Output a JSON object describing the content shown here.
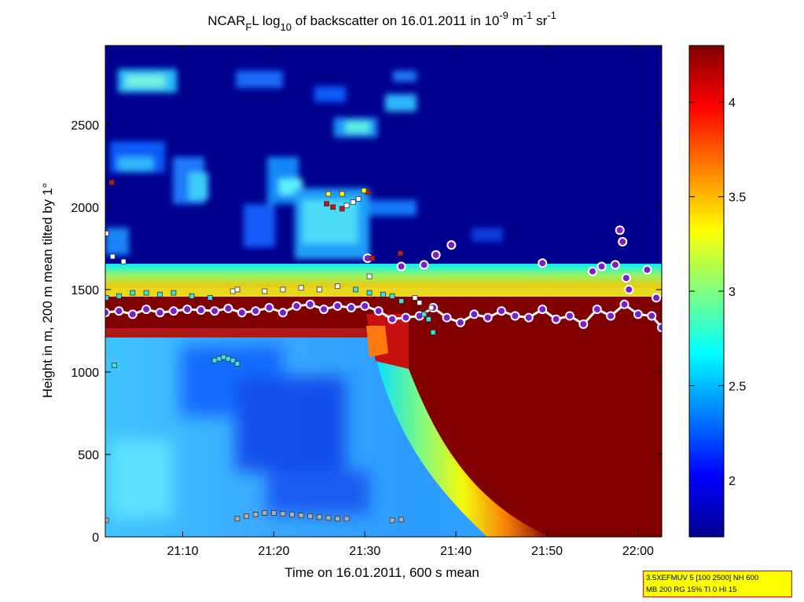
{
  "chart_data": {
    "type": "heatmap",
    "title": {
      "prefix": "NCAR",
      "sub1": "F",
      "mid1": "L log",
      "sub2": "10",
      "mid2": " of backscatter on 16.01.2011 in 10",
      "sup1": "-9",
      "mid3": " m",
      "sup2": "-1",
      "mid4": " sr",
      "sup3": "-1"
    },
    "xlabel": "Time on 16.01.2011, 600 s mean",
    "ylabel": "Height in m, 200 m mean tilted by 1°",
    "x_range_minutes": [
      1261.5,
      1322.6
    ],
    "x_ticks": [
      {
        "min": 1270,
        "label": "21:10"
      },
      {
        "min": 1280,
        "label": "21:20"
      },
      {
        "min": 1290,
        "label": "21:30"
      },
      {
        "min": 1300,
        "label": "21:40"
      },
      {
        "min": 1310,
        "label": "21:50"
      },
      {
        "min": 1320,
        "label": "22:00"
      }
    ],
    "ylim": [
      0,
      2980
    ],
    "y_ticks": [
      0,
      500,
      1000,
      1500,
      2000,
      2500
    ],
    "colorbar": {
      "range": [
        1.7,
        4.3
      ],
      "ticks": [
        2,
        2.5,
        3,
        3.5,
        4
      ],
      "colormap": "jet"
    },
    "series": [
      {
        "marker": "cloud-base-circle",
        "x": [
          1261.5,
          1263,
          1264.5,
          1266,
          1267.5,
          1269,
          1270.5,
          1272,
          1273.5,
          1275,
          1276.5,
          1278,
          1279.5,
          1281,
          1282.5,
          1284,
          1285.5,
          1287,
          1288.5,
          1290,
          1291.5,
          1293,
          1294.5,
          1296,
          1297.5,
          1299,
          1300.5,
          1302,
          1303.5,
          1305,
          1306.5,
          1308,
          1309.5,
          1311,
          1312.5,
          1314,
          1315.5,
          1317,
          1318.5,
          1320,
          1321.5,
          1322.6
        ],
        "y": [
          1360,
          1370,
          1350,
          1380,
          1360,
          1370,
          1380,
          1375,
          1370,
          1385,
          1360,
          1370,
          1390,
          1360,
          1400,
          1410,
          1380,
          1400,
          1390,
          1400,
          1370,
          1320,
          1330,
          1340,
          1390,
          1330,
          1300,
          1350,
          1330,
          1370,
          1340,
          1330,
          1380,
          1320,
          1340,
          1290,
          1380,
          1340,
          1410,
          1350,
          1340,
          1270
        ]
      },
      {
        "marker": "cloud-base-circle-high",
        "x": [
          1290.3,
          1294,
          1296.5,
          1297.8,
          1299.5,
          1309.5,
          1315,
          1316,
          1317.5,
          1318,
          1318.3,
          1318.7,
          1319,
          1321,
          1322
        ],
        "y": [
          1690,
          1640,
          1650,
          1710,
          1770,
          1660,
          1610,
          1640,
          1650,
          1860,
          1790,
          1570,
          1500,
          1620,
          1450
        ]
      },
      {
        "marker": "sq-white",
        "x": [
          1261.6,
          1262.3,
          1263.5,
          1275.5,
          1276,
          1279,
          1281,
          1283,
          1285,
          1287,
          1288,
          1288.7,
          1289.3,
          1290.5,
          1295.5,
          1296,
          1297.3
        ],
        "y": [
          1840,
          1700,
          1670,
          1490,
          1500,
          1490,
          1500,
          1510,
          1500,
          1520,
          2010,
          2030,
          2050,
          1580,
          1450,
          1420,
          1390
        ]
      },
      {
        "marker": "sq-cyan",
        "x": [
          1261.6,
          1263,
          1264.5,
          1266,
          1267.5,
          1269,
          1271,
          1273,
          1273.5,
          1274,
          1274.5,
          1275,
          1275.5,
          1276,
          1262.5,
          1289,
          1290.5,
          1292,
          1293,
          1294,
          1296.5,
          1297,
          1297.5
        ],
        "y": [
          1450,
          1460,
          1480,
          1480,
          1470,
          1480,
          1460,
          1450,
          1070,
          1080,
          1090,
          1080,
          1070,
          1050,
          1040,
          1500,
          1480,
          1470,
          1460,
          1430,
          1350,
          1320,
          1240
        ]
      },
      {
        "marker": "sq-red",
        "x": [
          1262.2,
          1285.8,
          1286.5,
          1287.5,
          1290.3,
          1290.8,
          1293.9
        ],
        "y": [
          2150,
          2020,
          2000,
          1990,
          2090,
          1690,
          1720
        ]
      },
      {
        "marker": "sq-yellow",
        "x": [
          1286,
          1287.5,
          1289.9
        ],
        "y": [
          2080,
          2080,
          2100
        ]
      },
      {
        "marker": "sq-grey",
        "x": [
          1261.6,
          1276,
          1277,
          1278,
          1279,
          1280,
          1281,
          1282,
          1283,
          1284,
          1285,
          1286,
          1287,
          1288,
          1293,
          1294
        ],
        "y": [
          100,
          110,
          125,
          135,
          145,
          145,
          140,
          135,
          130,
          125,
          120,
          115,
          110,
          110,
          100,
          105
        ]
      }
    ]
  },
  "info_box": {
    "line1": "3.5XEFMUV 5 [100 2500] NH 600",
    "line2": "MB 200 RG 15% TI 0 HI 15"
  }
}
